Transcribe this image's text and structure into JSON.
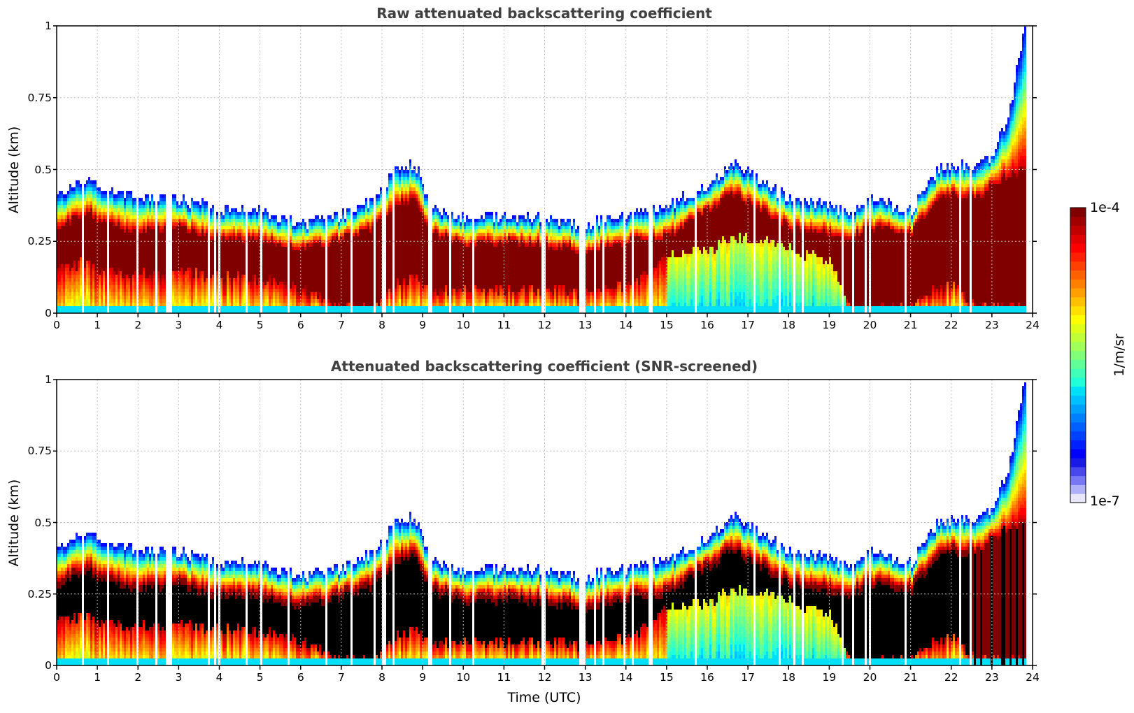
{
  "chart_data": [
    {
      "type": "heatmap",
      "title": "Raw attenuated backscattering coefficient",
      "xlabel": "Time (UTC)",
      "ylabel": "Altitude (km)",
      "xlim": [
        0,
        24
      ],
      "ylim": [
        0,
        1
      ],
      "xticks": [
        "0",
        "1",
        "2",
        "3",
        "4",
        "5",
        "6",
        "7",
        "8",
        "9",
        "10",
        "11",
        "12",
        "13",
        "14",
        "15",
        "16",
        "17",
        "18",
        "19",
        "20",
        "21",
        "22",
        "23",
        "24"
      ],
      "yticks": [
        "0",
        "0.25",
        "0.5",
        "0.75",
        "1"
      ],
      "grid": true,
      "screened": false,
      "layer_profile": {
        "time_h": [
          0,
          0.8,
          1,
          2,
          3,
          4,
          5,
          5.5,
          6,
          7,
          7.8,
          8.3,
          8.8,
          9.2,
          10,
          11,
          12,
          13,
          14,
          15,
          16,
          16.6,
          17.3,
          18,
          19,
          19.5,
          20,
          21,
          21.5,
          22,
          22.6,
          23,
          23.4,
          23.8
        ],
        "layer_top_km": [
          0.41,
          0.47,
          0.44,
          0.4,
          0.4,
          0.36,
          0.36,
          0.33,
          0.31,
          0.34,
          0.4,
          0.5,
          0.52,
          0.36,
          0.33,
          0.34,
          0.33,
          0.31,
          0.34,
          0.37,
          0.45,
          0.52,
          0.46,
          0.4,
          0.38,
          0.34,
          0.4,
          0.36,
          0.48,
          0.52,
          0.5,
          0.55,
          0.7,
          1.0
        ],
        "dense_top_km": [
          0.3,
          0.35,
          0.32,
          0.28,
          0.3,
          0.26,
          0.26,
          0.24,
          0.22,
          0.26,
          0.3,
          0.38,
          0.4,
          0.28,
          0.24,
          0.25,
          0.24,
          0.22,
          0.25,
          0.27,
          0.36,
          0.42,
          0.36,
          0.3,
          0.28,
          0.26,
          0.3,
          0.28,
          0.38,
          0.42,
          0.4,
          0.45,
          0.48,
          0.5
        ],
        "dense_bottom_km": [
          0.15,
          0.18,
          0.15,
          0.14,
          0.14,
          0.13,
          0.12,
          0.1,
          0.08,
          0.02,
          0.02,
          0.1,
          0.12,
          0.08,
          0.08,
          0.08,
          0.08,
          0.07,
          0.09,
          0.2,
          0.22,
          0.26,
          0.26,
          0.22,
          0.18,
          0.02,
          0.02,
          0.02,
          0.08,
          0.1,
          0.02,
          0.02,
          0.02,
          0.02
        ]
      },
      "colorbar": {
        "min": "1e-7",
        "max": "1e-4",
        "unit": "1/m/sr",
        "scale": "log"
      }
    },
    {
      "type": "heatmap",
      "title": "Attenuated backscattering coefficient (SNR-screened)",
      "xlabel": "Time (UTC)",
      "ylabel": "Altitude (km)",
      "xlim": [
        0,
        24
      ],
      "ylim": [
        0,
        1
      ],
      "xticks": [
        "0",
        "1",
        "2",
        "3",
        "4",
        "5",
        "6",
        "7",
        "8",
        "9",
        "10",
        "11",
        "12",
        "13",
        "14",
        "15",
        "16",
        "17",
        "18",
        "19",
        "20",
        "21",
        "22",
        "23",
        "24"
      ],
      "yticks": [
        "0",
        "0.25",
        "0.5",
        "0.75",
        "1"
      ],
      "grid": true,
      "screened": true,
      "colorbar": {
        "min": "1e-7",
        "max": "1e-4",
        "unit": "1/m/sr",
        "scale": "log"
      }
    }
  ],
  "colorbar": {
    "max_label": "1e-4",
    "min_label": "1e-7",
    "unit_label": "1/m/sr",
    "colors": [
      "#e8e8fa",
      "#b0b0f8",
      "#7878f4",
      "#4848ee",
      "#1a1ae6",
      "#0000ff",
      "#0020ff",
      "#0040ff",
      "#0060ff",
      "#0080ff",
      "#00a0ff",
      "#00c0ff",
      "#00e0f8",
      "#20ffd8",
      "#40ffb8",
      "#60ff98",
      "#80ff78",
      "#a0ff58",
      "#c0ff38",
      "#e0ff18",
      "#ffff00",
      "#ffe000",
      "#ffc000",
      "#ffa000",
      "#ff8000",
      "#ff6000",
      "#ff4000",
      "#ff2000",
      "#ff0000",
      "#e00000",
      "#c00000",
      "#a00000",
      "#800000"
    ]
  },
  "colors": {
    "screened_fill": "#000000",
    "title": "#404040",
    "grid": "#c0c0c0"
  }
}
